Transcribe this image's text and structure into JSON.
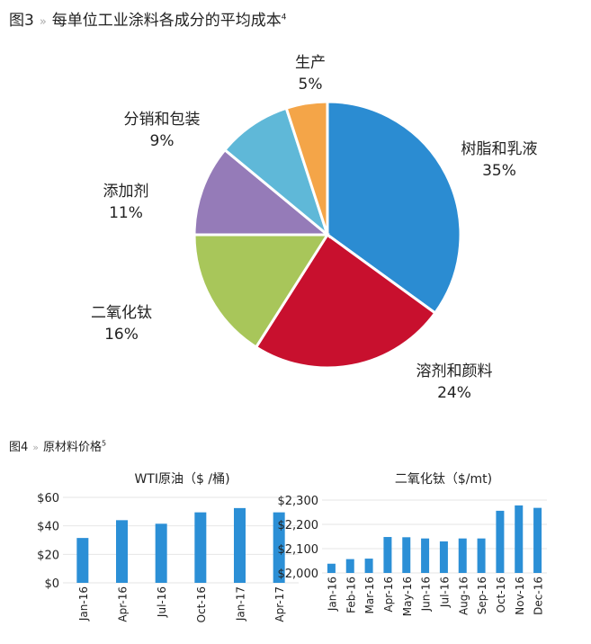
{
  "fig3": {
    "label": "图3",
    "sep": "»",
    "title": "每单位工业涂料各成分的平均成本",
    "note": "4"
  },
  "fig4": {
    "label": "图4",
    "sep": "»",
    "title": "原材料价格",
    "note": "5"
  },
  "chart_data": [
    {
      "type": "pie",
      "title": "每单位工业涂料各成分的平均成本",
      "slices": [
        {
          "label": "树脂和乳液",
          "value": 35,
          "pct": "35%",
          "color": "#2b8cd2"
        },
        {
          "label": "溶剂和颜料",
          "value": 24,
          "pct": "24%",
          "color": "#c8102e"
        },
        {
          "label": "二氧化钛",
          "value": 16,
          "pct": "16%",
          "color": "#a8c65a"
        },
        {
          "label": "添加剂",
          "value": 11,
          "pct": "11%",
          "color": "#957bb8"
        },
        {
          "label": "分销和包装",
          "value": 9,
          "pct": "9%",
          "color": "#5fb8d8"
        },
        {
          "label": "生产",
          "value": 5,
          "pct": "5%",
          "color": "#f4a548"
        }
      ]
    },
    {
      "type": "bar",
      "title": "WTI原油（$ /桶)",
      "categories": [
        "Jan-16",
        "Apr-16",
        "Jul-16",
        "Oct-16",
        "Jan-17",
        "Apr-17"
      ],
      "values": [
        31.5,
        44,
        41.5,
        49.5,
        52.5,
        49.5
      ],
      "ylim": [
        0,
        60
      ],
      "yticks": [
        0,
        20,
        40,
        60
      ],
      "ytick_labels": [
        "$0",
        "$20",
        "$40",
        "$60"
      ],
      "color": "#2b8fd6",
      "grid": true
    },
    {
      "type": "bar",
      "title": "二氧化钛（$/mt)",
      "categories": [
        "Jan-16",
        "Feb-16",
        "Mar-16",
        "Apr-16",
        "May-16",
        "Jun-16",
        "Jul-16",
        "Aug-16",
        "Sep-16",
        "Oct-16",
        "Nov-16",
        "Dec-16"
      ],
      "values": [
        2038,
        2057,
        2059,
        2148,
        2147,
        2142,
        2130,
        2142,
        2142,
        2256,
        2278,
        2268
      ],
      "ylim": [
        2000,
        2300
      ],
      "yticks": [
        2000,
        2100,
        2200,
        2300
      ],
      "ytick_labels": [
        "$2,000",
        "$2,100",
        "$2,200",
        "$2,300"
      ],
      "color": "#2b8fd6",
      "grid": true
    }
  ]
}
